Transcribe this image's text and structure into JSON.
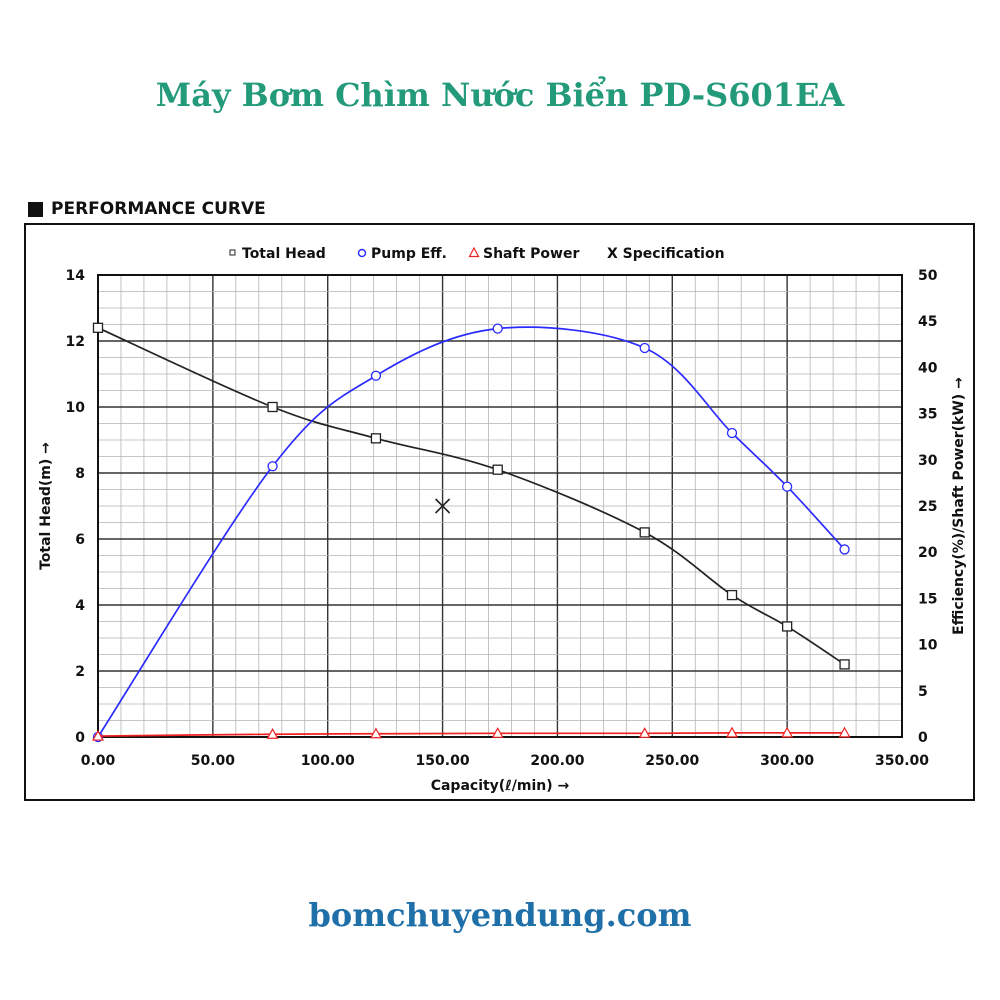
{
  "page": {
    "title": "Máy Bơm Chìm Nước Biển PD-S601EA",
    "section_heading": "PERFORMANCE CURVE",
    "site": "bomchuyendung.com"
  },
  "chart_data": {
    "type": "line",
    "title": "PERFORMANCE CURVE",
    "xlabel": "Capacity(ℓ/min) →",
    "ylabel": "Total Head(m) →",
    "y2label": "Efficiency(%)/Shaft Power(kW) →",
    "xlim": [
      0,
      350
    ],
    "ylim": [
      0,
      14
    ],
    "y2lim": [
      0,
      50
    ],
    "x_ticks": [
      0,
      50,
      100,
      150,
      200,
      250,
      300,
      350
    ],
    "x_tick_labels": [
      "0.00",
      "50.00",
      "100.00",
      "150.00",
      "200.00",
      "250.00",
      "300.00",
      "350.00"
    ],
    "y_ticks": [
      0,
      2,
      4,
      6,
      8,
      10,
      12,
      14
    ],
    "y_tick_labels": [
      "0",
      "2",
      "4",
      "6",
      "8",
      "10",
      "12",
      "14"
    ],
    "y2_ticks": [
      0,
      5,
      10,
      15,
      20,
      25,
      30,
      35,
      40,
      45,
      50
    ],
    "y2_tick_labels": [
      "0",
      "5",
      "10",
      "15",
      "20",
      "25",
      "30",
      "35",
      "40",
      "45",
      "50"
    ],
    "grid": true,
    "legend_position": "top",
    "series": [
      {
        "name": "Total Head",
        "axis": "left",
        "marker": "square",
        "color": "#222222",
        "points": [
          [
            0,
            12.4
          ],
          [
            76,
            10.0
          ],
          [
            121,
            9.05
          ],
          [
            174,
            8.1
          ],
          [
            238,
            6.2
          ],
          [
            276,
            4.3
          ],
          [
            300,
            3.35
          ],
          [
            325,
            2.2
          ]
        ]
      },
      {
        "name": "Pump Eff.",
        "axis": "right",
        "marker": "circle",
        "color": "#2b2bff",
        "points": [
          [
            0,
            0
          ],
          [
            76,
            29.3
          ],
          [
            121,
            39.1
          ],
          [
            174,
            44.2
          ],
          [
            238,
            42.1
          ],
          [
            276,
            32.9
          ],
          [
            300,
            27.1
          ],
          [
            325,
            20.3
          ]
        ]
      },
      {
        "name": "Shaft Power",
        "axis": "right",
        "marker": "triangle",
        "color": "#ee2222",
        "points": [
          [
            0,
            0.1
          ],
          [
            76,
            0.3
          ],
          [
            121,
            0.35
          ],
          [
            174,
            0.4
          ],
          [
            238,
            0.4
          ],
          [
            276,
            0.45
          ],
          [
            300,
            0.45
          ],
          [
            325,
            0.45
          ]
        ]
      },
      {
        "name": "Specification",
        "axis": "left",
        "marker": "x",
        "color": "#222222",
        "points": [
          [
            150,
            7.0
          ]
        ]
      }
    ],
    "legend": [
      {
        "marker": "square",
        "label": "Total Head",
        "color": "#222222"
      },
      {
        "marker": "circle",
        "label": "Pump Eff.",
        "color": "#2b2bff"
      },
      {
        "marker": "triangle",
        "label": "Shaft Power",
        "color": "#ee2222"
      },
      {
        "marker": "X",
        "label": "Specification",
        "color": "#222222"
      }
    ]
  }
}
